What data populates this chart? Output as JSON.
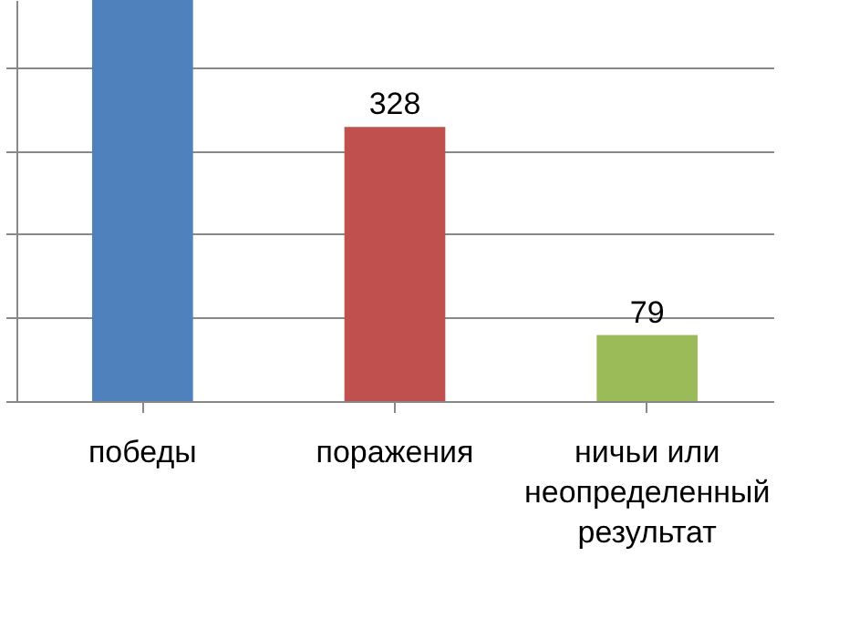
{
  "chart_data": {
    "type": "bar",
    "categories": [
      "победы",
      "поражения",
      "ничьи или\nнеопределенный\nрезультат"
    ],
    "values": [
      480,
      328,
      79
    ],
    "colors": [
      "#4f81bd",
      "#c0504d",
      "#9bbb59"
    ],
    "value_labels": [
      null,
      "328",
      "79"
    ],
    "ylim": [
      0,
      480
    ],
    "yticks": [
      {
        "value": 0,
        "label": null
      },
      {
        "value": 100,
        "label": null
      },
      {
        "value": 200,
        "label": null
      },
      {
        "value": 300,
        "label": null
      },
      {
        "value": 400,
        "label": null
      }
    ],
    "grid": "y",
    "tick_labels": "x"
  }
}
